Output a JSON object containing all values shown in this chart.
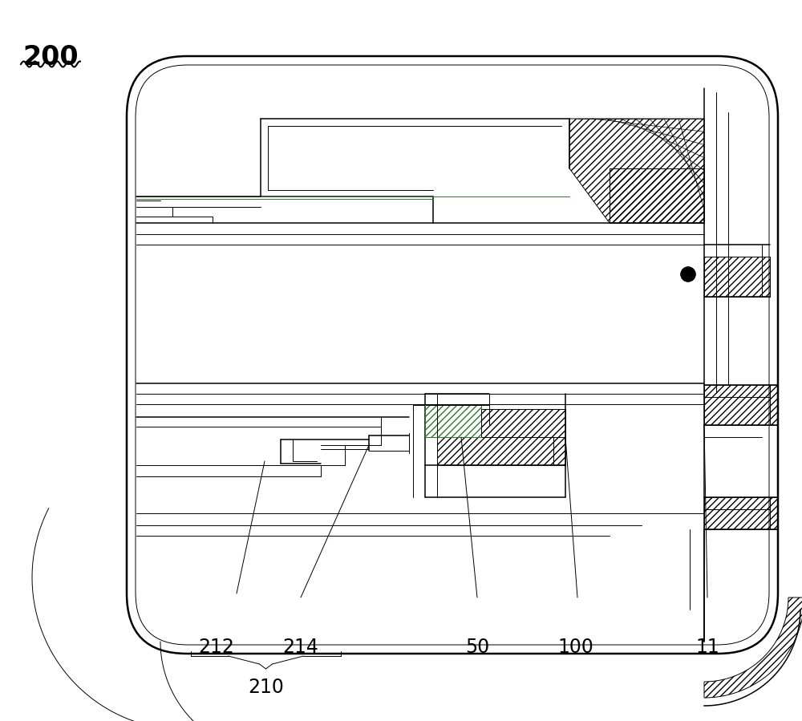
{
  "bg_color": "#ffffff",
  "line_color": "#000000",
  "green_color": "#2d7a2d",
  "label_200": "200",
  "label_212": "212",
  "label_214": "214",
  "label_210": "210",
  "label_50": "50",
  "label_100": "100",
  "label_11": "11",
  "fig_width": 10.0,
  "fig_height": 8.99,
  "dpi": 100
}
